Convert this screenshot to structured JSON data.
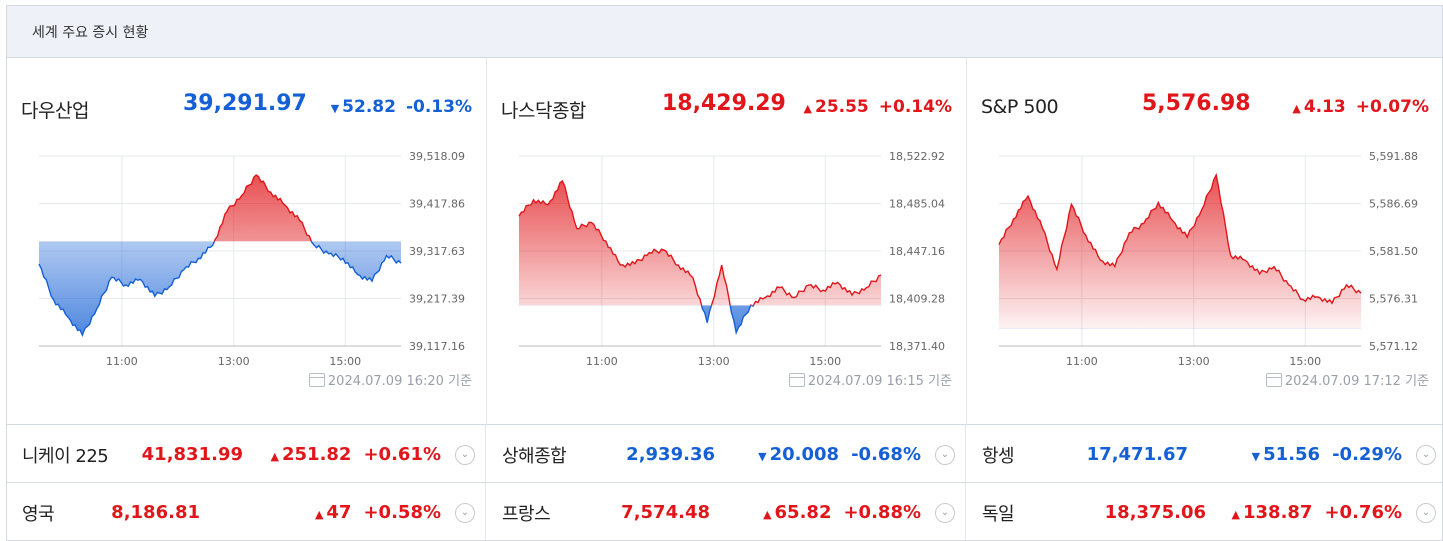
{
  "header": {
    "title": "세계 주요 증시 현황"
  },
  "colors": {
    "up": "#e0161a",
    "down": "#1560d4",
    "grid": "#e6e8ec"
  },
  "icons": {
    "timestamp": "calendar-clock-icon",
    "more": "chevron-down-icon",
    "up": "triangle-up-icon",
    "down": "triangle-down-icon"
  },
  "panels": [
    {
      "name": "다우산업",
      "value": "39,291.97",
      "direction": "down",
      "arrow": "▼",
      "change": "52.82",
      "percent": "-0.13%",
      "timestamp": "2024.07.09 16:20 기준",
      "ticks_y": [
        "39,518.09",
        "39,417.86",
        "39,317.63",
        "39,217.39",
        "39,117.16"
      ],
      "ticks_x": [
        "11:00",
        "13:00",
        "15:00"
      ],
      "chart_data": {
        "type": "area",
        "x_range": [
          "09:30",
          "16:00"
        ],
        "ylim": [
          39117.16,
          39518.09
        ],
        "baseline": 39338,
        "x": [
          0,
          4,
          8,
          12,
          16,
          20,
          24,
          28,
          32,
          36,
          40,
          44,
          48,
          52,
          56,
          60,
          64,
          68,
          72,
          76,
          80,
          84,
          88,
          92,
          96,
          100
        ],
        "values": [
          39290,
          39215,
          39178,
          39140,
          39196,
          39262,
          39246,
          39258,
          39222,
          39242,
          39278,
          39302,
          39330,
          39402,
          39435,
          39478,
          39442,
          39414,
          39382,
          39330,
          39312,
          39302,
          39268,
          39254,
          39308,
          39292
        ]
      }
    },
    {
      "name": "나스닥종합",
      "value": "18,429.29",
      "direction": "up",
      "arrow": "▲",
      "change": "25.55",
      "percent": "+0.14%",
      "timestamp": "2024.07.09 16:15 기준",
      "ticks_y": [
        "18,522.92",
        "18,485.04",
        "18,447.16",
        "18,409.28",
        "18,371.40"
      ],
      "ticks_x": [
        "11:00",
        "13:00",
        "15:00"
      ],
      "chart_data": {
        "type": "area",
        "x_range": [
          "09:30",
          "16:00"
        ],
        "ylim": [
          18371.4,
          18522.92
        ],
        "baseline": 18403.8,
        "x": [
          0,
          4,
          8,
          12,
          16,
          20,
          24,
          28,
          32,
          36,
          40,
          44,
          48,
          52,
          56,
          60,
          64,
          68,
          72,
          76,
          80,
          84,
          88,
          92,
          96,
          100
        ],
        "values": [
          18475,
          18488,
          18484,
          18503,
          18465,
          18470,
          18455,
          18436,
          18437,
          18446,
          18448,
          18436,
          18426,
          18390,
          18436,
          18382,
          18404,
          18410,
          18418,
          18410,
          18420,
          18416,
          18422,
          18412,
          18418,
          18428
        ]
      }
    },
    {
      "name": "S&P 500",
      "value": "5,576.98",
      "direction": "up",
      "arrow": "▲",
      "change": "4.13",
      "percent": "+0.07%",
      "timestamp": "2024.07.09 17:12 기준",
      "ticks_y": [
        "5,591.88",
        "5,586.69",
        "5,581.50",
        "5,576.31",
        "5,571.12"
      ],
      "ticks_x": [
        "11:00",
        "13:00",
        "15:00"
      ],
      "chart_data": {
        "type": "area",
        "x_range": [
          "09:30",
          "16:00"
        ],
        "ylim": [
          5571.12,
          5591.88
        ],
        "baseline": 5573.0,
        "x": [
          0,
          4,
          8,
          12,
          16,
          20,
          24,
          28,
          32,
          36,
          40,
          44,
          48,
          52,
          56,
          60,
          64,
          68,
          72,
          76,
          80,
          84,
          88,
          92,
          96,
          100
        ],
        "values": [
          5582.2,
          5585.0,
          5587.5,
          5584.0,
          5579.5,
          5586.6,
          5583.2,
          5580.5,
          5579.8,
          5583.5,
          5584.5,
          5586.8,
          5584.8,
          5583.0,
          5586.0,
          5589.8,
          5581.0,
          5580.5,
          5579.0,
          5579.8,
          5577.8,
          5576.2,
          5576.5,
          5575.8,
          5577.8,
          5576.9
        ]
      }
    }
  ],
  "rows": [
    [
      {
        "name": "니케이 225",
        "value": "41,831.99",
        "direction": "up",
        "arrow": "▲",
        "change": "251.82",
        "percent": "+0.61%"
      },
      {
        "name": "상해종합",
        "value": "2,939.36",
        "direction": "down",
        "arrow": "▼",
        "change": "20.008",
        "percent": "-0.68%"
      },
      {
        "name": "항셍",
        "value": "17,471.67",
        "direction": "down",
        "arrow": "▼",
        "change": "51.56",
        "percent": "-0.29%"
      }
    ],
    [
      {
        "name": "영국",
        "value": "8,186.81",
        "direction": "up",
        "arrow": "▲",
        "change": "47",
        "percent": "+0.58%"
      },
      {
        "name": "프랑스",
        "value": "7,574.48",
        "direction": "up",
        "arrow": "▲",
        "change": "65.82",
        "percent": "+0.88%"
      },
      {
        "name": "독일",
        "value": "18,375.06",
        "direction": "up",
        "arrow": "▲",
        "change": "138.87",
        "percent": "+0.76%"
      }
    ]
  ]
}
